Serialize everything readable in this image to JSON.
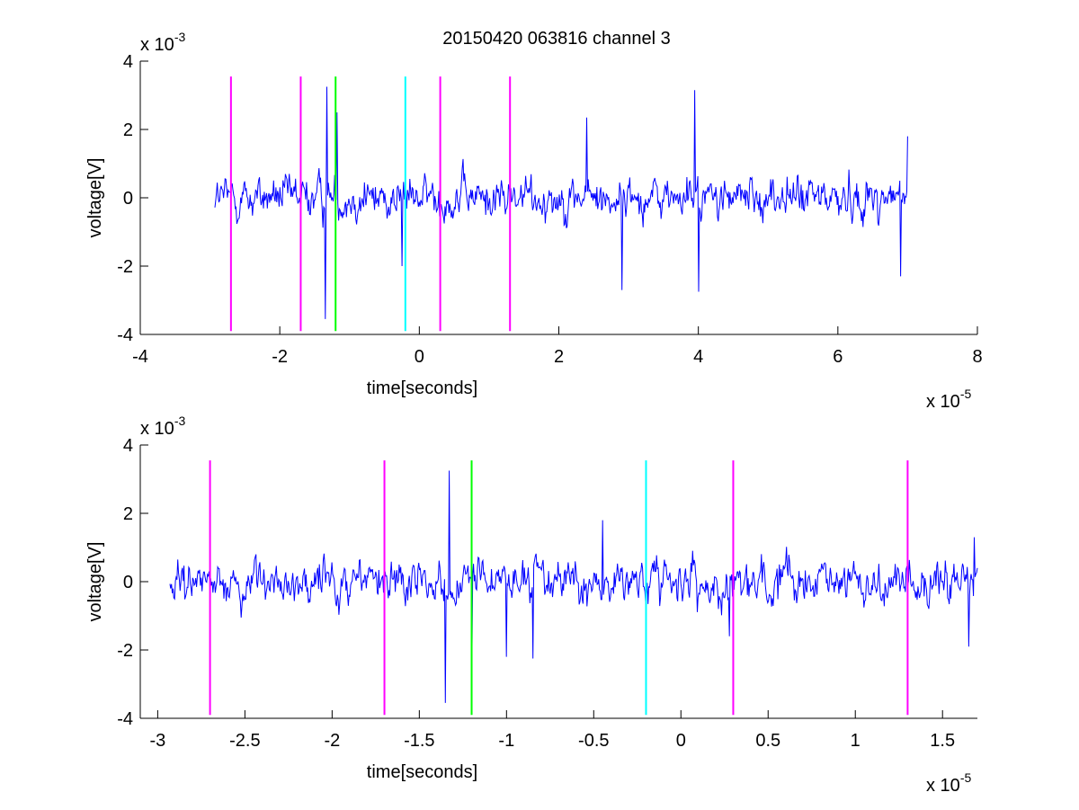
{
  "figure": {
    "title": "20150420 063816 channel 3"
  },
  "colors": {
    "signal": "#0000ff",
    "marker_magenta": "#ff00ff",
    "marker_green": "#00ff00",
    "marker_cyan": "#00ffff",
    "axes": "#000000",
    "background": "#ffffff"
  },
  "chart_data": [
    {
      "type": "line",
      "title": "20150420 063816 channel 3",
      "xlabel": "time[seconds]",
      "ylabel": "voltage[V]",
      "x_exponent": "x 10-5",
      "y_exponent": "x 10-3",
      "xlim": [
        -4,
        8
      ],
      "ylim": [
        -4,
        4
      ],
      "xticks": [
        -4,
        -2,
        0,
        2,
        4,
        6,
        8
      ],
      "xtick_labels": [
        "-4",
        "-2",
        "0",
        "2",
        "4",
        "6",
        "8"
      ],
      "yticks": [
        -4,
        -2,
        0,
        2,
        4
      ],
      "ytick_labels": [
        "-4",
        "-2",
        "0",
        "2",
        "4"
      ],
      "grid": false,
      "series": [
        {
          "kind": "noise_trace",
          "color": "signal",
          "x_range": [
            -2.93,
            7.0
          ],
          "notable_peaks": [
            {
              "x": -1.32,
              "y": 3.25
            },
            {
              "x": -1.35,
              "y": -3.55
            },
            {
              "x": -1.18,
              "y": 2.5
            },
            {
              "x": -0.25,
              "y": -2.0
            },
            {
              "x": 2.4,
              "y": 2.35
            },
            {
              "x": 2.9,
              "y": -2.7
            },
            {
              "x": 3.95,
              "y": 3.15
            },
            {
              "x": 4.0,
              "y": -2.75
            },
            {
              "x": 6.9,
              "y": -2.3
            },
            {
              "x": 7.0,
              "y": 1.8
            }
          ],
          "y_typical_amplitude": 0.85
        }
      ],
      "markers": [
        {
          "x": -2.7,
          "color": "marker_magenta",
          "ymin": -3.9,
          "ymax": 3.55
        },
        {
          "x": -1.7,
          "color": "marker_magenta",
          "ymin": -3.9,
          "ymax": 3.55
        },
        {
          "x": -1.2,
          "color": "marker_green",
          "ymin": -3.9,
          "ymax": 3.55
        },
        {
          "x": -0.2,
          "color": "marker_cyan",
          "ymin": -3.9,
          "ymax": 3.55
        },
        {
          "x": 0.3,
          "color": "marker_magenta",
          "ymin": -3.9,
          "ymax": 3.55
        },
        {
          "x": 1.3,
          "color": "marker_magenta",
          "ymin": -3.9,
          "ymax": 3.55
        }
      ]
    },
    {
      "type": "line",
      "title": "",
      "xlabel": "time[seconds]",
      "ylabel": "voltage[V]",
      "x_exponent": "x 10-5",
      "y_exponent": "x 10-3",
      "xlim": [
        -3.1,
        1.7
      ],
      "ylim": [
        -4,
        4
      ],
      "xticks": [
        -3,
        -2.5,
        -2,
        -1.5,
        -1,
        -0.5,
        0,
        0.5,
        1,
        1.5
      ],
      "xtick_labels": [
        "-3",
        "-2.5",
        "-2",
        "-1.5",
        "-1",
        "-0.5",
        "0",
        "0.5",
        "1",
        "1.5"
      ],
      "yticks": [
        -4,
        -2,
        0,
        2,
        4
      ],
      "ytick_labels": [
        "-4",
        "-2",
        "0",
        "2",
        "4"
      ],
      "grid": false,
      "series": [
        {
          "kind": "noise_trace",
          "color": "signal",
          "x_range": [
            -2.93,
            1.7
          ],
          "notable_peaks": [
            {
              "x": -1.33,
              "y": 3.25
            },
            {
              "x": -1.35,
              "y": -3.55
            },
            {
              "x": -1.2,
              "y": 2.8
            },
            {
              "x": -1.2,
              "y": -2.2
            },
            {
              "x": -1.0,
              "y": -2.2
            },
            {
              "x": -0.85,
              "y": -2.25
            },
            {
              "x": -0.45,
              "y": 1.8
            },
            {
              "x": 0.28,
              "y": -1.6
            },
            {
              "x": 1.65,
              "y": -1.9
            },
            {
              "x": 1.68,
              "y": 1.3
            }
          ],
          "y_typical_amplitude": 0.85
        }
      ],
      "markers": [
        {
          "x": -2.7,
          "color": "marker_magenta",
          "ymin": -3.9,
          "ymax": 3.55
        },
        {
          "x": -1.7,
          "color": "marker_magenta",
          "ymin": -3.9,
          "ymax": 3.55
        },
        {
          "x": -1.2,
          "color": "marker_green",
          "ymin": -3.9,
          "ymax": 3.55
        },
        {
          "x": -0.2,
          "color": "marker_cyan",
          "ymin": -3.9,
          "ymax": 3.55
        },
        {
          "x": 0.3,
          "color": "marker_magenta",
          "ymin": -3.9,
          "ymax": 3.55
        },
        {
          "x": 1.3,
          "color": "marker_magenta",
          "ymin": -3.9,
          "ymax": 3.55
        }
      ]
    }
  ]
}
